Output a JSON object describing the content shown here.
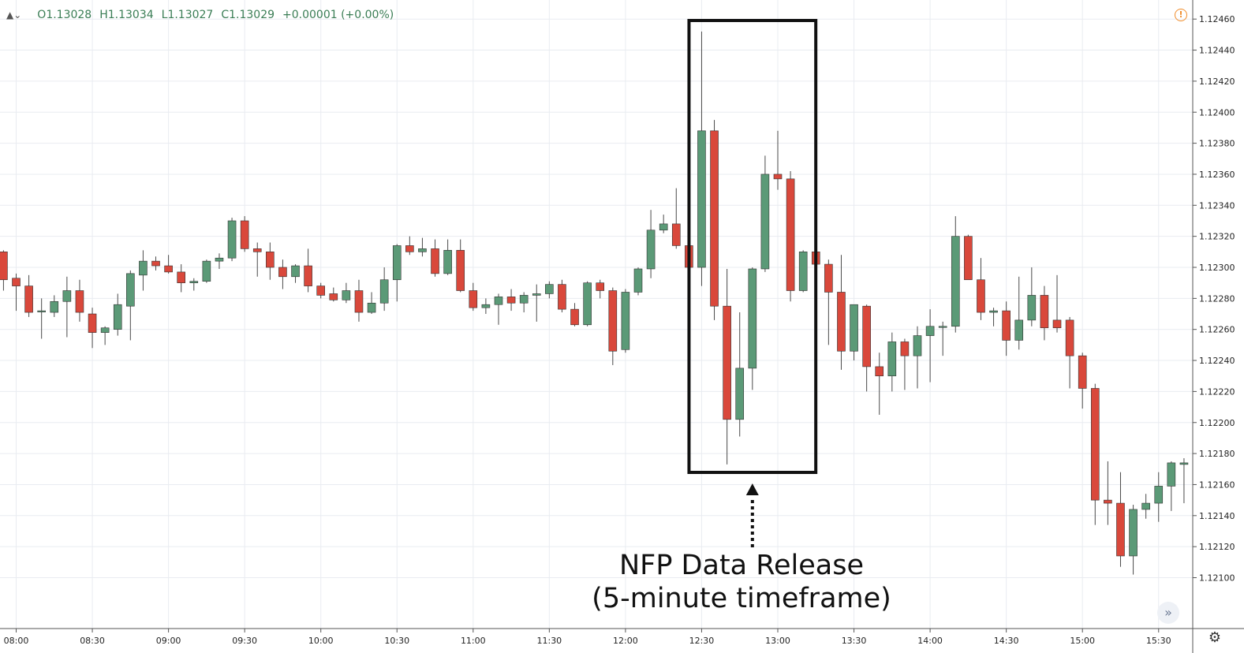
{
  "header": {
    "ohlc": {
      "open": "O1.13028",
      "high": "H1.13034",
      "low": "L1.13027",
      "close": "C1.13029",
      "change": "+0.00001 (+0.00%)"
    }
  },
  "annotation": {
    "line1": "NFP Data Release",
    "line2": "(5-minute timeframe)"
  },
  "icons": {
    "warning": "warning-icon",
    "scroll_right": "double-chevron-right-icon",
    "settings": "gear-icon"
  },
  "colors": {
    "bullish": "#5b9a77",
    "bearish": "#d9483b",
    "grid": "#e9ecf1",
    "warning": "#f08c2a"
  },
  "chart_data": {
    "type": "candlestick",
    "ylim": [
      1.1199,
      1.1247
    ],
    "y_ticks": [
      "1.12100",
      "1.12120",
      "1.12140",
      "1.12160",
      "1.12180",
      "1.12200",
      "1.12220",
      "1.12240",
      "1.12260",
      "1.12280",
      "1.12300",
      "1.12320",
      "1.12340",
      "1.12360",
      "1.12380",
      "1.12400",
      "1.12420",
      "1.12440",
      "1.12460"
    ],
    "x_ticks": [
      "08:00",
      "08:30",
      "09:00",
      "09:30",
      "10:00",
      "10:30",
      "11:00",
      "11:30",
      "12:00",
      "12:30",
      "13:00",
      "13:30",
      "14:00",
      "14:30",
      "15:00",
      "15:30"
    ],
    "grid": true,
    "highlight": {
      "label": "NFP Data Release (5-minute timeframe)",
      "from": "12:30",
      "to": "13:10"
    },
    "candles": [
      {
        "t": "07:55",
        "o": 1.1231,
        "h": 1.12311,
        "l": 1.12285,
        "c": 1.12292
      },
      {
        "t": "08:00",
        "o": 1.12293,
        "h": 1.12296,
        "l": 1.12272,
        "c": 1.12288
      },
      {
        "t": "08:05",
        "o": 1.12288,
        "h": 1.12295,
        "l": 1.12268,
        "c": 1.12271
      },
      {
        "t": "08:10",
        "o": 1.12272,
        "h": 1.1228,
        "l": 1.12254,
        "c": 1.12272
      },
      {
        "t": "08:15",
        "o": 1.12271,
        "h": 1.12282,
        "l": 1.12268,
        "c": 1.12278
      },
      {
        "t": "08:20",
        "o": 1.12278,
        "h": 1.12294,
        "l": 1.12255,
        "c": 1.12285
      },
      {
        "t": "08:25",
        "o": 1.12285,
        "h": 1.12292,
        "l": 1.12265,
        "c": 1.12271
      },
      {
        "t": "08:30",
        "o": 1.1227,
        "h": 1.12274,
        "l": 1.12248,
        "c": 1.12258
      },
      {
        "t": "08:35",
        "o": 1.12258,
        "h": 1.12262,
        "l": 1.1225,
        "c": 1.12261
      },
      {
        "t": "08:40",
        "o": 1.1226,
        "h": 1.12283,
        "l": 1.12256,
        "c": 1.12276
      },
      {
        "t": "08:45",
        "o": 1.12275,
        "h": 1.12298,
        "l": 1.12253,
        "c": 1.12296
      },
      {
        "t": "08:50",
        "o": 1.12295,
        "h": 1.12311,
        "l": 1.12285,
        "c": 1.12304
      },
      {
        "t": "08:55",
        "o": 1.12304,
        "h": 1.12307,
        "l": 1.12298,
        "c": 1.12301
      },
      {
        "t": "09:00",
        "o": 1.12301,
        "h": 1.12308,
        "l": 1.12296,
        "c": 1.12297
      },
      {
        "t": "09:05",
        "o": 1.12297,
        "h": 1.12302,
        "l": 1.12284,
        "c": 1.1229
      },
      {
        "t": "09:10",
        "o": 1.1229,
        "h": 1.12293,
        "l": 1.12285,
        "c": 1.12291
      },
      {
        "t": "09:15",
        "o": 1.12291,
        "h": 1.12305,
        "l": 1.1229,
        "c": 1.12304
      },
      {
        "t": "09:20",
        "o": 1.12304,
        "h": 1.12309,
        "l": 1.12299,
        "c": 1.12306
      },
      {
        "t": "09:25",
        "o": 1.12306,
        "h": 1.12332,
        "l": 1.12304,
        "c": 1.1233
      },
      {
        "t": "09:30",
        "o": 1.1233,
        "h": 1.12333,
        "l": 1.1231,
        "c": 1.12312
      },
      {
        "t": "09:35",
        "o": 1.12312,
        "h": 1.12316,
        "l": 1.12294,
        "c": 1.1231
      },
      {
        "t": "09:40",
        "o": 1.1231,
        "h": 1.12316,
        "l": 1.12292,
        "c": 1.123
      },
      {
        "t": "09:45",
        "o": 1.123,
        "h": 1.12305,
        "l": 1.12286,
        "c": 1.12294
      },
      {
        "t": "09:50",
        "o": 1.12294,
        "h": 1.12302,
        "l": 1.1229,
        "c": 1.12301
      },
      {
        "t": "09:55",
        "o": 1.12301,
        "h": 1.12312,
        "l": 1.12284,
        "c": 1.12288
      },
      {
        "t": "10:00",
        "o": 1.12288,
        "h": 1.1229,
        "l": 1.1228,
        "c": 1.12282
      },
      {
        "t": "10:05",
        "o": 1.12283,
        "h": 1.12287,
        "l": 1.12278,
        "c": 1.12279
      },
      {
        "t": "10:10",
        "o": 1.12279,
        "h": 1.1229,
        "l": 1.12277,
        "c": 1.12285
      },
      {
        "t": "10:15",
        "o": 1.12285,
        "h": 1.12292,
        "l": 1.12265,
        "c": 1.12271
      },
      {
        "t": "10:20",
        "o": 1.12271,
        "h": 1.12284,
        "l": 1.1227,
        "c": 1.12277
      },
      {
        "t": "10:25",
        "o": 1.12277,
        "h": 1.123,
        "l": 1.12272,
        "c": 1.12292
      },
      {
        "t": "10:30",
        "o": 1.12292,
        "h": 1.12315,
        "l": 1.12278,
        "c": 1.12314
      },
      {
        "t": "10:35",
        "o": 1.12314,
        "h": 1.1232,
        "l": 1.12308,
        "c": 1.1231
      },
      {
        "t": "10:40",
        "o": 1.1231,
        "h": 1.12319,
        "l": 1.12307,
        "c": 1.12312
      },
      {
        "t": "10:45",
        "o": 1.12312,
        "h": 1.12318,
        "l": 1.12294,
        "c": 1.12296
      },
      {
        "t": "10:50",
        "o": 1.12296,
        "h": 1.12318,
        "l": 1.12295,
        "c": 1.12311
      },
      {
        "t": "10:55",
        "o": 1.12311,
        "h": 1.12318,
        "l": 1.12284,
        "c": 1.12285
      },
      {
        "t": "11:00",
        "o": 1.12285,
        "h": 1.1229,
        "l": 1.12272,
        "c": 1.12274
      },
      {
        "t": "11:05",
        "o": 1.12274,
        "h": 1.1228,
        "l": 1.1227,
        "c": 1.12276
      },
      {
        "t": "11:10",
        "o": 1.12276,
        "h": 1.12283,
        "l": 1.12263,
        "c": 1.12281
      },
      {
        "t": "11:15",
        "o": 1.12281,
        "h": 1.12286,
        "l": 1.12272,
        "c": 1.12277
      },
      {
        "t": "11:20",
        "o": 1.12277,
        "h": 1.12284,
        "l": 1.12271,
        "c": 1.12282
      },
      {
        "t": "11:25",
        "o": 1.12282,
        "h": 1.12289,
        "l": 1.12265,
        "c": 1.12283
      },
      {
        "t": "11:30",
        "o": 1.12283,
        "h": 1.12291,
        "l": 1.1228,
        "c": 1.12289
      },
      {
        "t": "11:35",
        "o": 1.12289,
        "h": 1.12292,
        "l": 1.12271,
        "c": 1.12273
      },
      {
        "t": "11:40",
        "o": 1.12273,
        "h": 1.12277,
        "l": 1.12262,
        "c": 1.12263
      },
      {
        "t": "11:45",
        "o": 1.12263,
        "h": 1.12291,
        "l": 1.12262,
        "c": 1.1229
      },
      {
        "t": "11:50",
        "o": 1.1229,
        "h": 1.12292,
        "l": 1.1228,
        "c": 1.12285
      },
      {
        "t": "11:55",
        "o": 1.12285,
        "h": 1.12287,
        "l": 1.12237,
        "c": 1.12246
      },
      {
        "t": "12:00",
        "o": 1.12247,
        "h": 1.12286,
        "l": 1.12245,
        "c": 1.12284
      },
      {
        "t": "12:05",
        "o": 1.12284,
        "h": 1.123,
        "l": 1.12282,
        "c": 1.12299
      },
      {
        "t": "12:10",
        "o": 1.12299,
        "h": 1.12337,
        "l": 1.12293,
        "c": 1.12324
      },
      {
        "t": "12:15",
        "o": 1.12324,
        "h": 1.12334,
        "l": 1.12322,
        "c": 1.12328
      },
      {
        "t": "12:20",
        "o": 1.12328,
        "h": 1.12351,
        "l": 1.12312,
        "c": 1.12314
      },
      {
        "t": "12:25",
        "o": 1.12314,
        "h": 1.12316,
        "l": 1.123,
        "c": 1.123
      },
      {
        "t": "12:30",
        "o": 1.123,
        "h": 1.12452,
        "l": 1.12288,
        "c": 1.12388
      },
      {
        "t": "12:35",
        "o": 1.12388,
        "h": 1.12395,
        "l": 1.12266,
        "c": 1.12275
      },
      {
        "t": "12:40",
        "o": 1.12275,
        "h": 1.12299,
        "l": 1.12173,
        "c": 1.12202
      },
      {
        "t": "12:45",
        "o": 1.12202,
        "h": 1.12271,
        "l": 1.12191,
        "c": 1.12235
      },
      {
        "t": "12:50",
        "o": 1.12235,
        "h": 1.123,
        "l": 1.12221,
        "c": 1.12299
      },
      {
        "t": "12:55",
        "o": 1.12299,
        "h": 1.12372,
        "l": 1.12297,
        "c": 1.1236
      },
      {
        "t": "13:00",
        "o": 1.1236,
        "h": 1.12388,
        "l": 1.1235,
        "c": 1.12357
      },
      {
        "t": "13:05",
        "o": 1.12357,
        "h": 1.12362,
        "l": 1.12278,
        "c": 1.12285
      },
      {
        "t": "13:10",
        "o": 1.12285,
        "h": 1.12311,
        "l": 1.12284,
        "c": 1.1231
      },
      {
        "t": "13:15",
        "o": 1.1231,
        "h": 1.12327,
        "l": 1.12295,
        "c": 1.12302
      },
      {
        "t": "13:20",
        "o": 1.12302,
        "h": 1.12305,
        "l": 1.1225,
        "c": 1.12284
      },
      {
        "t": "13:25",
        "o": 1.12284,
        "h": 1.12308,
        "l": 1.12234,
        "c": 1.12246
      },
      {
        "t": "13:30",
        "o": 1.12246,
        "h": 1.12276,
        "l": 1.1224,
        "c": 1.12276
      },
      {
        "t": "13:35",
        "o": 1.12275,
        "h": 1.12276,
        "l": 1.1222,
        "c": 1.12236
      },
      {
        "t": "13:40",
        "o": 1.12236,
        "h": 1.12245,
        "l": 1.12205,
        "c": 1.1223
      },
      {
        "t": "13:45",
        "o": 1.1223,
        "h": 1.12258,
        "l": 1.1222,
        "c": 1.12252
      },
      {
        "t": "13:50",
        "o": 1.12252,
        "h": 1.12254,
        "l": 1.12221,
        "c": 1.12243
      },
      {
        "t": "13:55",
        "o": 1.12243,
        "h": 1.12262,
        "l": 1.12222,
        "c": 1.12256
      },
      {
        "t": "14:00",
        "o": 1.12256,
        "h": 1.12273,
        "l": 1.12226,
        "c": 1.12262
      },
      {
        "t": "14:05",
        "o": 1.12262,
        "h": 1.12265,
        "l": 1.12243,
        "c": 1.12262
      },
      {
        "t": "14:10",
        "o": 1.12262,
        "h": 1.12333,
        "l": 1.12258,
        "c": 1.1232
      },
      {
        "t": "14:15",
        "o": 1.1232,
        "h": 1.12321,
        "l": 1.12292,
        "c": 1.12292
      },
      {
        "t": "14:20",
        "o": 1.12292,
        "h": 1.12306,
        "l": 1.12266,
        "c": 1.12271
      },
      {
        "t": "14:25",
        "o": 1.12271,
        "h": 1.12274,
        "l": 1.12262,
        "c": 1.12272
      },
      {
        "t": "14:30",
        "o": 1.12272,
        "h": 1.12278,
        "l": 1.12243,
        "c": 1.12253
      },
      {
        "t": "14:35",
        "o": 1.12253,
        "h": 1.12294,
        "l": 1.12247,
        "c": 1.12266
      },
      {
        "t": "14:40",
        "o": 1.12266,
        "h": 1.123,
        "l": 1.12262,
        "c": 1.12282
      },
      {
        "t": "14:45",
        "o": 1.12282,
        "h": 1.12288,
        "l": 1.12253,
        "c": 1.12261
      },
      {
        "t": "14:50",
        "o": 1.12266,
        "h": 1.12295,
        "l": 1.12258,
        "c": 1.12261
      },
      {
        "t": "14:55",
        "o": 1.12266,
        "h": 1.12268,
        "l": 1.12222,
        "c": 1.12243
      },
      {
        "t": "15:00",
        "o": 1.12243,
        "h": 1.12245,
        "l": 1.12209,
        "c": 1.12222
      },
      {
        "t": "15:05",
        "o": 1.12222,
        "h": 1.12225,
        "l": 1.12134,
        "c": 1.1215
      },
      {
        "t": "15:10",
        "o": 1.1215,
        "h": 1.12175,
        "l": 1.12134,
        "c": 1.12148
      },
      {
        "t": "15:15",
        "o": 1.12148,
        "h": 1.12168,
        "l": 1.12107,
        "c": 1.12114
      },
      {
        "t": "15:20",
        "o": 1.12114,
        "h": 1.12147,
        "l": 1.12102,
        "c": 1.12144
      },
      {
        "t": "15:25",
        "o": 1.12144,
        "h": 1.12154,
        "l": 1.12138,
        "c": 1.12148
      },
      {
        "t": "15:30",
        "o": 1.12148,
        "h": 1.12168,
        "l": 1.12136,
        "c": 1.12159
      },
      {
        "t": "15:35",
        "o": 1.12159,
        "h": 1.12175,
        "l": 1.12143,
        "c": 1.12174
      },
      {
        "t": "15:40",
        "o": 1.12173,
        "h": 1.12177,
        "l": 1.12148,
        "c": 1.12174
      }
    ]
  }
}
